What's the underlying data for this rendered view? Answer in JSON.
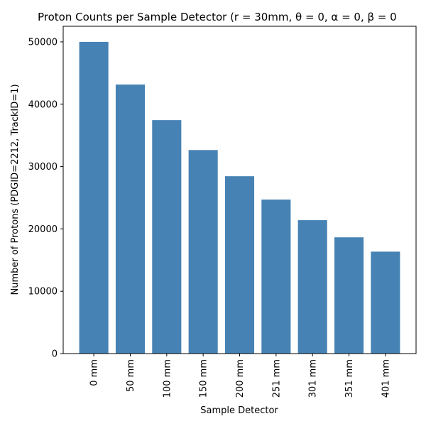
{
  "chart_data": {
    "type": "bar",
    "title": "Proton Counts per Sample Detector (r = 30mm, θ = 0, α = 0, β = 0",
    "xlabel": "Sample Detector",
    "ylabel": "Number of Protons (PDGID=2212, TrackID=1)",
    "categories": [
      "0 mm",
      "50 mm",
      "100 mm",
      "150 mm",
      "200 mm",
      "251 mm",
      "301 mm",
      "351 mm",
      "401 mm"
    ],
    "values": [
      50000,
      43150,
      37450,
      32650,
      28450,
      24700,
      21400,
      18650,
      16350
    ],
    "ylim": [
      0,
      52500
    ],
    "yticks": [
      0,
      10000,
      20000,
      30000,
      40000,
      50000
    ],
    "ytick_labels": [
      "0",
      "10000",
      "20000",
      "30000",
      "40000",
      "50000"
    ],
    "bar_color": "#4682b4",
    "grid": false,
    "legend": "none"
  }
}
